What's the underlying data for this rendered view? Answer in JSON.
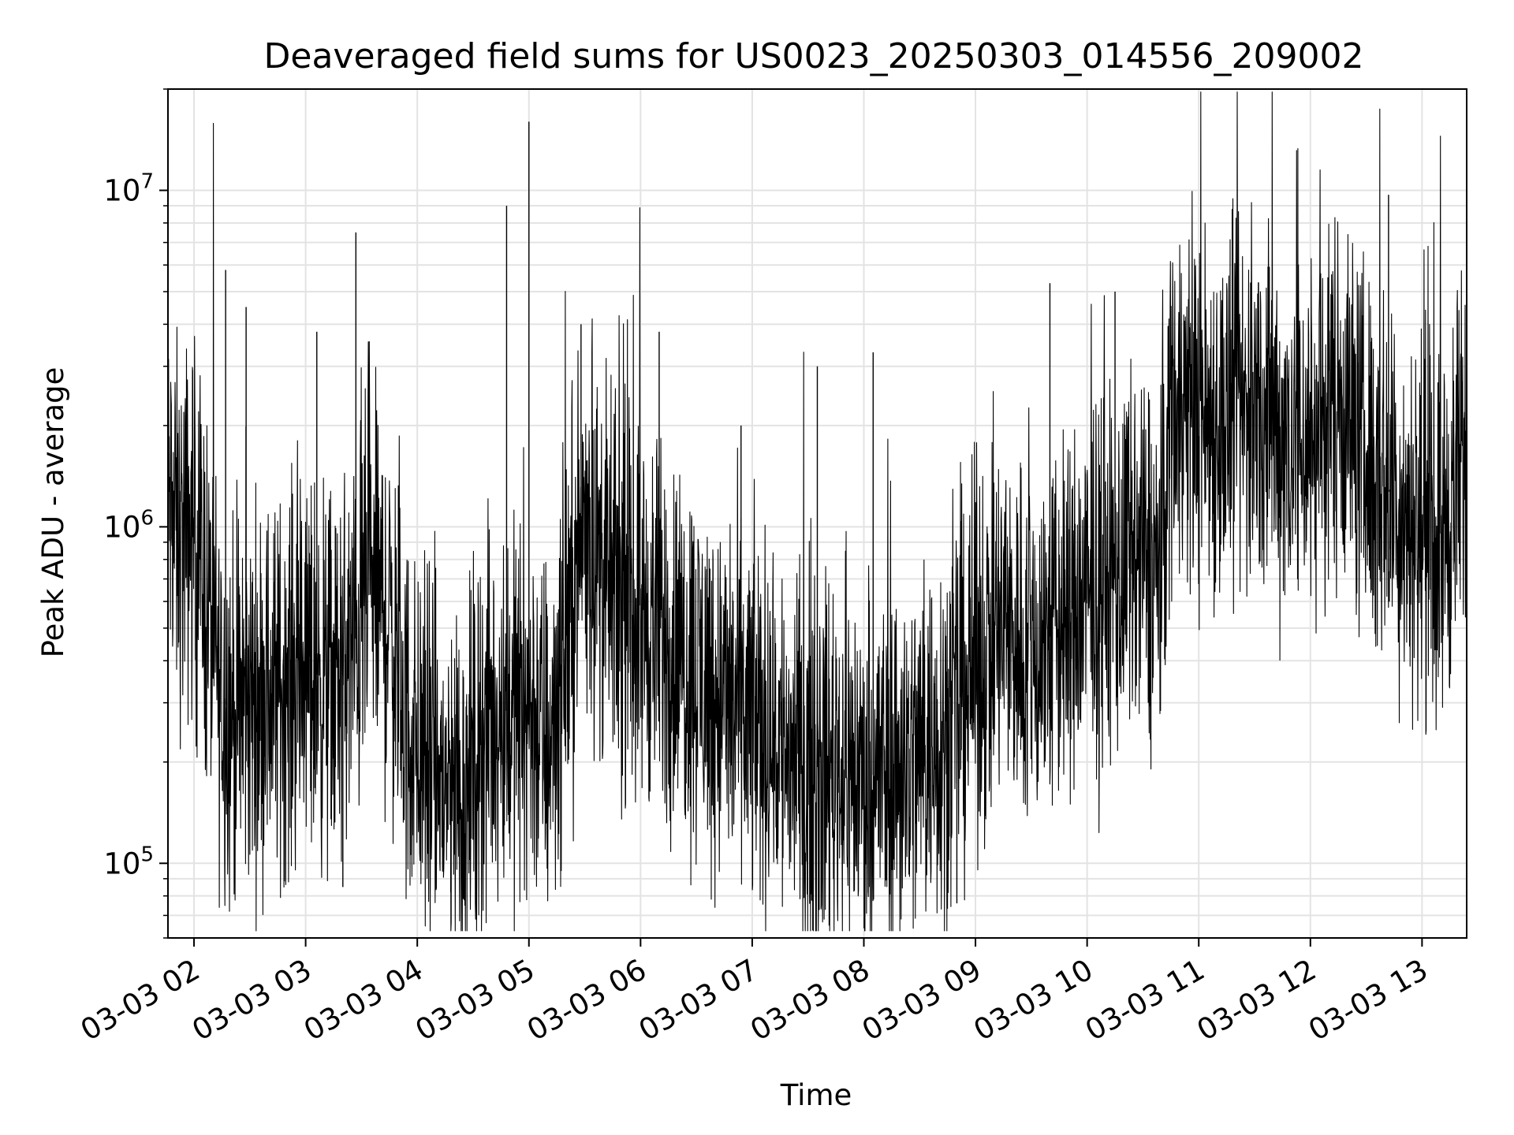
{
  "chart_data": {
    "type": "line",
    "title": "Deaveraged field sums for US0023_20250303_014556_209002",
    "xlabel": "Time",
    "ylabel": "Peak ADU - average",
    "yscale": "log",
    "ylim": [
      60000,
      20000000
    ],
    "xlim": [
      "2025-03-03 01:46",
      "2025-03-03 13:24"
    ],
    "grid": true,
    "x_ticks": [
      {
        "time": "2025-03-03 02:00",
        "label": "03-03 02"
      },
      {
        "time": "2025-03-03 03:00",
        "label": "03-03 03"
      },
      {
        "time": "2025-03-03 04:00",
        "label": "03-03 04"
      },
      {
        "time": "2025-03-03 05:00",
        "label": "03-03 05"
      },
      {
        "time": "2025-03-03 06:00",
        "label": "03-03 06"
      },
      {
        "time": "2025-03-03 07:00",
        "label": "03-03 07"
      },
      {
        "time": "2025-03-03 08:00",
        "label": "03-03 08"
      },
      {
        "time": "2025-03-03 09:00",
        "label": "03-03 09"
      },
      {
        "time": "2025-03-03 10:00",
        "label": "03-03 10"
      },
      {
        "time": "2025-03-03 11:00",
        "label": "03-03 11"
      },
      {
        "time": "2025-03-03 12:00",
        "label": "03-03 12"
      },
      {
        "time": "2025-03-03 13:00",
        "label": "03-03 13"
      }
    ],
    "y_ticks": [
      {
        "value": 100000,
        "base": "10",
        "exp": "5"
      },
      {
        "value": 1000000,
        "base": "10",
        "exp": "6"
      },
      {
        "value": 10000000,
        "base": "10",
        "exp": "7"
      }
    ],
    "series": [
      {
        "color": "#000000",
        "points": [
          {
            "x": "2025-03-03 01:46",
            "y": 1200000
          },
          {
            "x": "2025-03-03 01:52",
            "y": 900000
          },
          {
            "x": "2025-03-03 02:00",
            "y": 1000000
          },
          {
            "x": "2025-03-03 02:07",
            "y": 600000
          },
          {
            "x": "2025-03-03 02:15",
            "y": 300000
          },
          {
            "x": "2025-03-03 02:25",
            "y": 280000
          },
          {
            "x": "2025-03-03 02:35",
            "y": 320000
          },
          {
            "x": "2025-03-03 02:45",
            "y": 330000
          },
          {
            "x": "2025-03-03 03:00",
            "y": 380000
          },
          {
            "x": "2025-03-03 03:15",
            "y": 340000
          },
          {
            "x": "2025-03-03 03:25",
            "y": 420000
          },
          {
            "x": "2025-03-03 03:35",
            "y": 700000
          },
          {
            "x": "2025-03-03 03:45",
            "y": 520000
          },
          {
            "x": "2025-03-03 03:55",
            "y": 250000
          },
          {
            "x": "2025-03-03 04:05",
            "y": 200000
          },
          {
            "x": "2025-03-03 04:15",
            "y": 170000
          },
          {
            "x": "2025-03-03 04:25",
            "y": 160000
          },
          {
            "x": "2025-03-03 04:35",
            "y": 240000
          },
          {
            "x": "2025-03-03 04:45",
            "y": 280000
          },
          {
            "x": "2025-03-03 05:00",
            "y": 300000
          },
          {
            "x": "2025-03-03 05:10",
            "y": 220000
          },
          {
            "x": "2025-03-03 05:20",
            "y": 450000
          },
          {
            "x": "2025-03-03 05:30",
            "y": 1100000
          },
          {
            "x": "2025-03-03 05:40",
            "y": 700000
          },
          {
            "x": "2025-03-03 05:50",
            "y": 600000
          },
          {
            "x": "2025-03-03 06:00",
            "y": 550000
          },
          {
            "x": "2025-03-03 06:15",
            "y": 450000
          },
          {
            "x": "2025-03-03 06:30",
            "y": 380000
          },
          {
            "x": "2025-03-03 06:45",
            "y": 300000
          },
          {
            "x": "2025-03-03 07:00",
            "y": 270000
          },
          {
            "x": "2025-03-03 07:15",
            "y": 230000
          },
          {
            "x": "2025-03-03 07:30",
            "y": 190000
          },
          {
            "x": "2025-03-03 07:45",
            "y": 200000
          },
          {
            "x": "2025-03-03 08:00",
            "y": 180000
          },
          {
            "x": "2025-03-03 08:15",
            "y": 190000
          },
          {
            "x": "2025-03-03 08:30",
            "y": 210000
          },
          {
            "x": "2025-03-03 08:45",
            "y": 260000
          },
          {
            "x": "2025-03-03 09:00",
            "y": 400000
          },
          {
            "x": "2025-03-03 09:15",
            "y": 500000
          },
          {
            "x": "2025-03-03 09:30",
            "y": 420000
          },
          {
            "x": "2025-03-03 09:45",
            "y": 500000
          },
          {
            "x": "2025-03-03 10:00",
            "y": 600000
          },
          {
            "x": "2025-03-03 10:15",
            "y": 700000
          },
          {
            "x": "2025-03-03 10:30",
            "y": 800000
          },
          {
            "x": "2025-03-03 10:40",
            "y": 750000
          },
          {
            "x": "2025-03-03 10:45",
            "y": 2500000
          },
          {
            "x": "2025-03-03 11:00",
            "y": 2200000
          },
          {
            "x": "2025-03-03 11:15",
            "y": 2000000
          },
          {
            "x": "2025-03-03 11:30",
            "y": 2300000
          },
          {
            "x": "2025-03-03 11:45",
            "y": 1900000
          },
          {
            "x": "2025-03-03 12:00",
            "y": 1800000
          },
          {
            "x": "2025-03-03 12:15",
            "y": 2600000
          },
          {
            "x": "2025-03-03 12:30",
            "y": 1600000
          },
          {
            "x": "2025-03-03 12:45",
            "y": 1200000
          },
          {
            "x": "2025-03-03 13:00",
            "y": 1000000
          },
          {
            "x": "2025-03-03 13:10",
            "y": 900000
          },
          {
            "x": "2025-03-03 13:24",
            "y": 1700000
          }
        ],
        "spikes": [
          {
            "x": "2025-03-03 02:17",
            "y": 5800000
          },
          {
            "x": "2025-03-03 02:28",
            "y": 4500000
          },
          {
            "x": "2025-03-03 03:06",
            "y": 3800000
          },
          {
            "x": "2025-03-03 03:27",
            "y": 7500000
          },
          {
            "x": "2025-03-03 03:20",
            "y": 85000
          },
          {
            "x": "2025-03-03 04:18",
            "y": 82000
          },
          {
            "x": "2025-03-03 04:48",
            "y": 9000000
          },
          {
            "x": "2025-03-03 05:00",
            "y": 16000000
          },
          {
            "x": "2025-03-03 05:28",
            "y": 4000000
          },
          {
            "x": "2025-03-03 06:10",
            "y": 3800000
          },
          {
            "x": "2025-03-03 06:54",
            "y": 2000000
          },
          {
            "x": "2025-03-03 07:35",
            "y": 3000000
          },
          {
            "x": "2025-03-03 08:05",
            "y": 3300000
          },
          {
            "x": "2025-03-03 08:50",
            "y": 76000
          },
          {
            "x": "2025-03-03 09:40",
            "y": 5300000
          },
          {
            "x": "2025-03-03 10:15",
            "y": 5000000
          },
          {
            "x": "2025-03-03 11:18",
            "y": 8800000
          },
          {
            "x": "2025-03-03 12:42",
            "y": 9700000
          },
          {
            "x": "2025-03-03 13:07",
            "y": 430000
          }
        ]
      }
    ]
  }
}
